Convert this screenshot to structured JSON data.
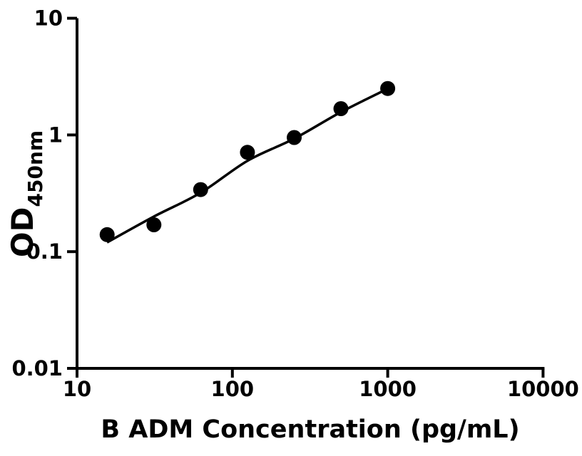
{
  "figure": {
    "background": "#ffffff",
    "foreground": "#000000"
  },
  "chart_data": {
    "type": "scatter",
    "title": "",
    "xlabel": "B ADM Concentration (pg/mL)",
    "ylabel_main": "OD",
    "ylabel_sub": "450nm",
    "x_scale": "log10",
    "y_scale": "log10",
    "xlim": [
      10,
      10000
    ],
    "ylim": [
      0.01,
      10
    ],
    "x_ticks": [
      "10",
      "100",
      "1000",
      "10000"
    ],
    "y_ticks": [
      "10",
      "1",
      "0.1",
      "0.01"
    ],
    "grid": false,
    "legend": null,
    "marker_color": "#000000",
    "line_color": "#000000",
    "series": [
      {
        "name": "standard-points",
        "type": "scatter",
        "marker": "filled-circle",
        "x": [
          15.625,
          31.25,
          62.5,
          125,
          250,
          500,
          1000
        ],
        "y": [
          0.14,
          0.17,
          0.34,
          0.71,
          0.95,
          1.68,
          2.5
        ]
      },
      {
        "name": "fit-curve",
        "type": "line",
        "x": [
          15.6,
          31.25,
          62.5,
          125,
          250,
          500,
          1000
        ],
        "y": [
          0.12,
          0.2,
          0.32,
          0.6,
          0.93,
          1.57,
          2.49
        ]
      }
    ]
  }
}
